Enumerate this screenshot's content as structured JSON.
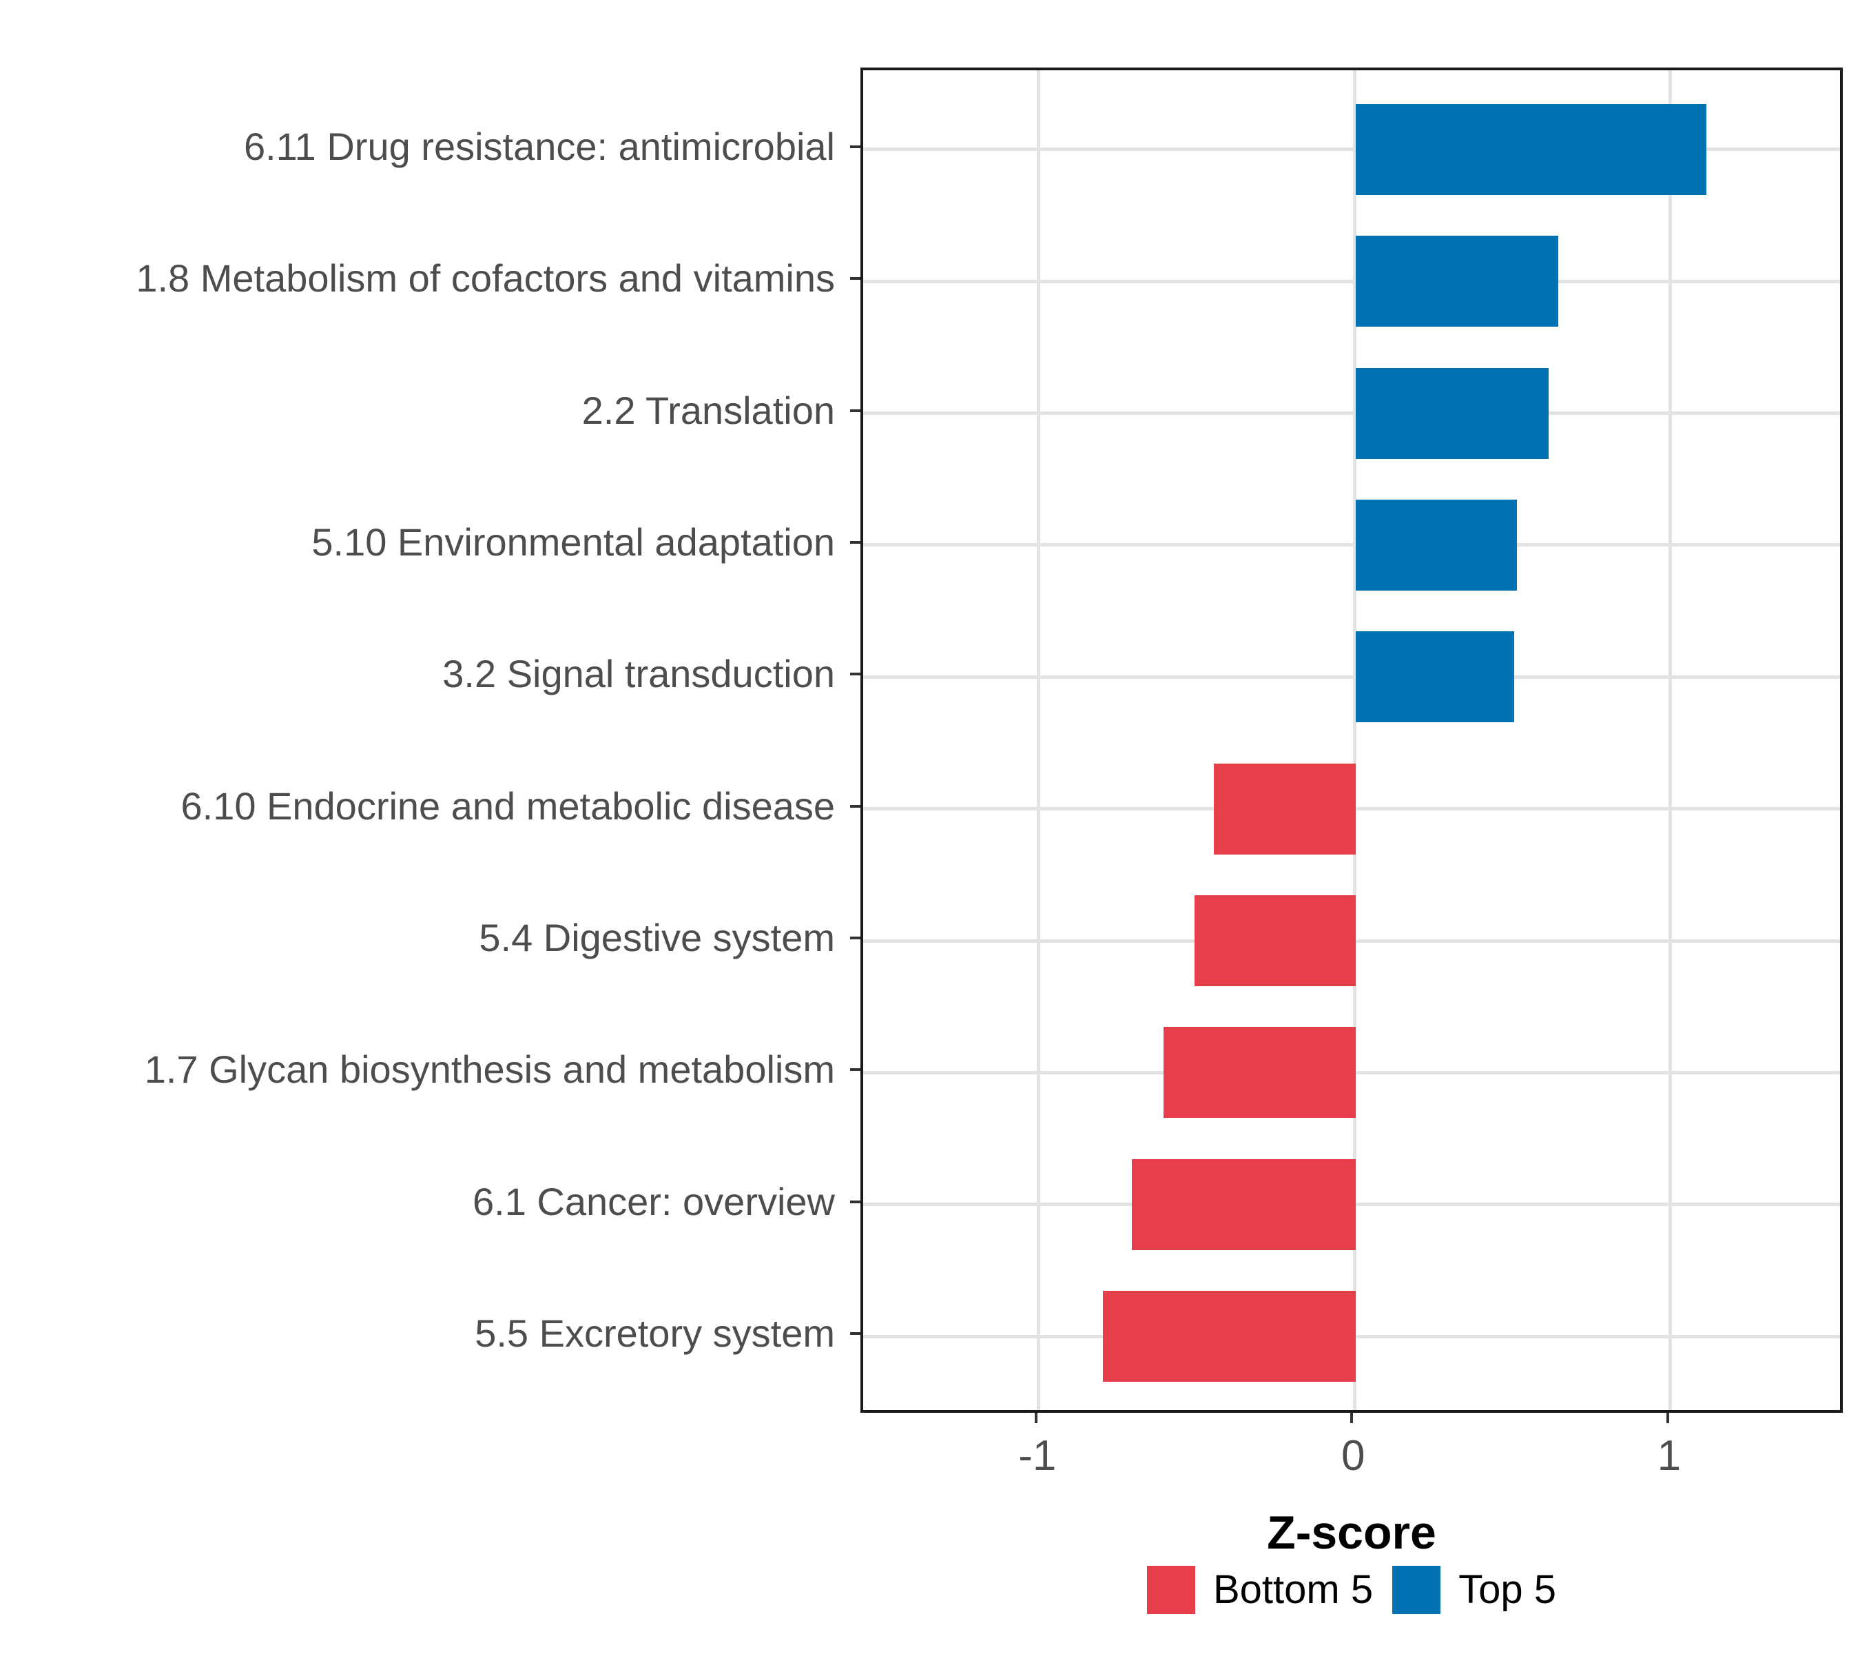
{
  "chart_data": {
    "type": "bar",
    "orientation": "horizontal",
    "title": "",
    "xlabel": "Z-score",
    "ylabel": "",
    "x_ticks": [
      {
        "label": "-1",
        "value": -1
      },
      {
        "label": "0",
        "value": 0
      },
      {
        "label": "1",
        "value": 1
      }
    ],
    "xlim": [
      -1.56,
      1.55
    ],
    "grid": true,
    "legend_position": "bottom",
    "bars": [
      {
        "label": "6.11 Drug resistance: antimicrobial",
        "value": 1.11,
        "group": "Top 5"
      },
      {
        "label": "1.8 Metabolism of cofactors and vitamins",
        "value": 0.64,
        "group": "Top 5"
      },
      {
        "label": "2.2 Translation",
        "value": 0.61,
        "group": "Top 5"
      },
      {
        "label": "5.10 Environmental adaptation",
        "value": 0.51,
        "group": "Top 5"
      },
      {
        "label": "3.2 Signal transduction",
        "value": 0.5,
        "group": "Top 5"
      },
      {
        "label": "6.10 Endocrine and metabolic disease",
        "value": -0.45,
        "group": "Bottom 5"
      },
      {
        "label": "5.4 Digestive system",
        "value": -0.51,
        "group": "Bottom 5"
      },
      {
        "label": "1.7 Glycan biosynthesis and metabolism",
        "value": -0.61,
        "group": "Bottom 5"
      },
      {
        "label": "6.1 Cancer: overview",
        "value": -0.71,
        "group": "Bottom 5"
      },
      {
        "label": "5.5 Excretory system",
        "value": -0.8,
        "group": "Bottom 5"
      }
    ],
    "legend": [
      {
        "label": "Bottom 5",
        "color": "#e63e4b"
      },
      {
        "label": "Top 5",
        "color": "#0072b2"
      }
    ]
  }
}
